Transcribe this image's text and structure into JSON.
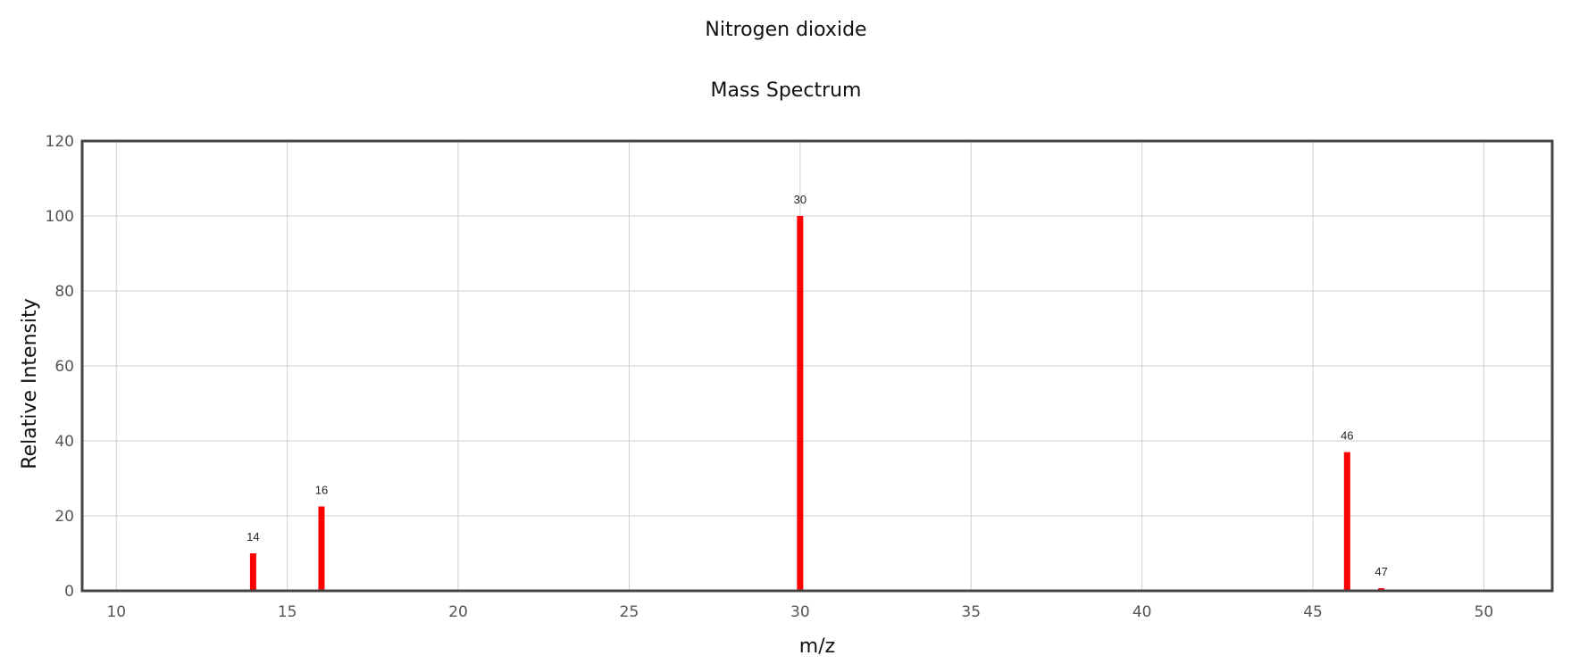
{
  "chart_data": {
    "type": "bar",
    "title": "Nitrogen dioxide",
    "subtitle": "Mass Spectrum",
    "xlabel": "m/z",
    "ylabel": "Relative Intensity",
    "xlim": [
      9,
      52
    ],
    "ylim": [
      0,
      120
    ],
    "xticks": [
      10,
      15,
      20,
      25,
      30,
      35,
      40,
      45,
      50
    ],
    "yticks": [
      0,
      20,
      40,
      60,
      80,
      100,
      120
    ],
    "grid": true,
    "legend": "none",
    "bar_color": "#ff0000",
    "x": [
      14,
      16,
      30,
      46,
      47
    ],
    "values": [
      10,
      22.5,
      100,
      37,
      0.7
    ],
    "peak_labels": [
      "14",
      "16",
      "30",
      "46",
      "47"
    ]
  }
}
